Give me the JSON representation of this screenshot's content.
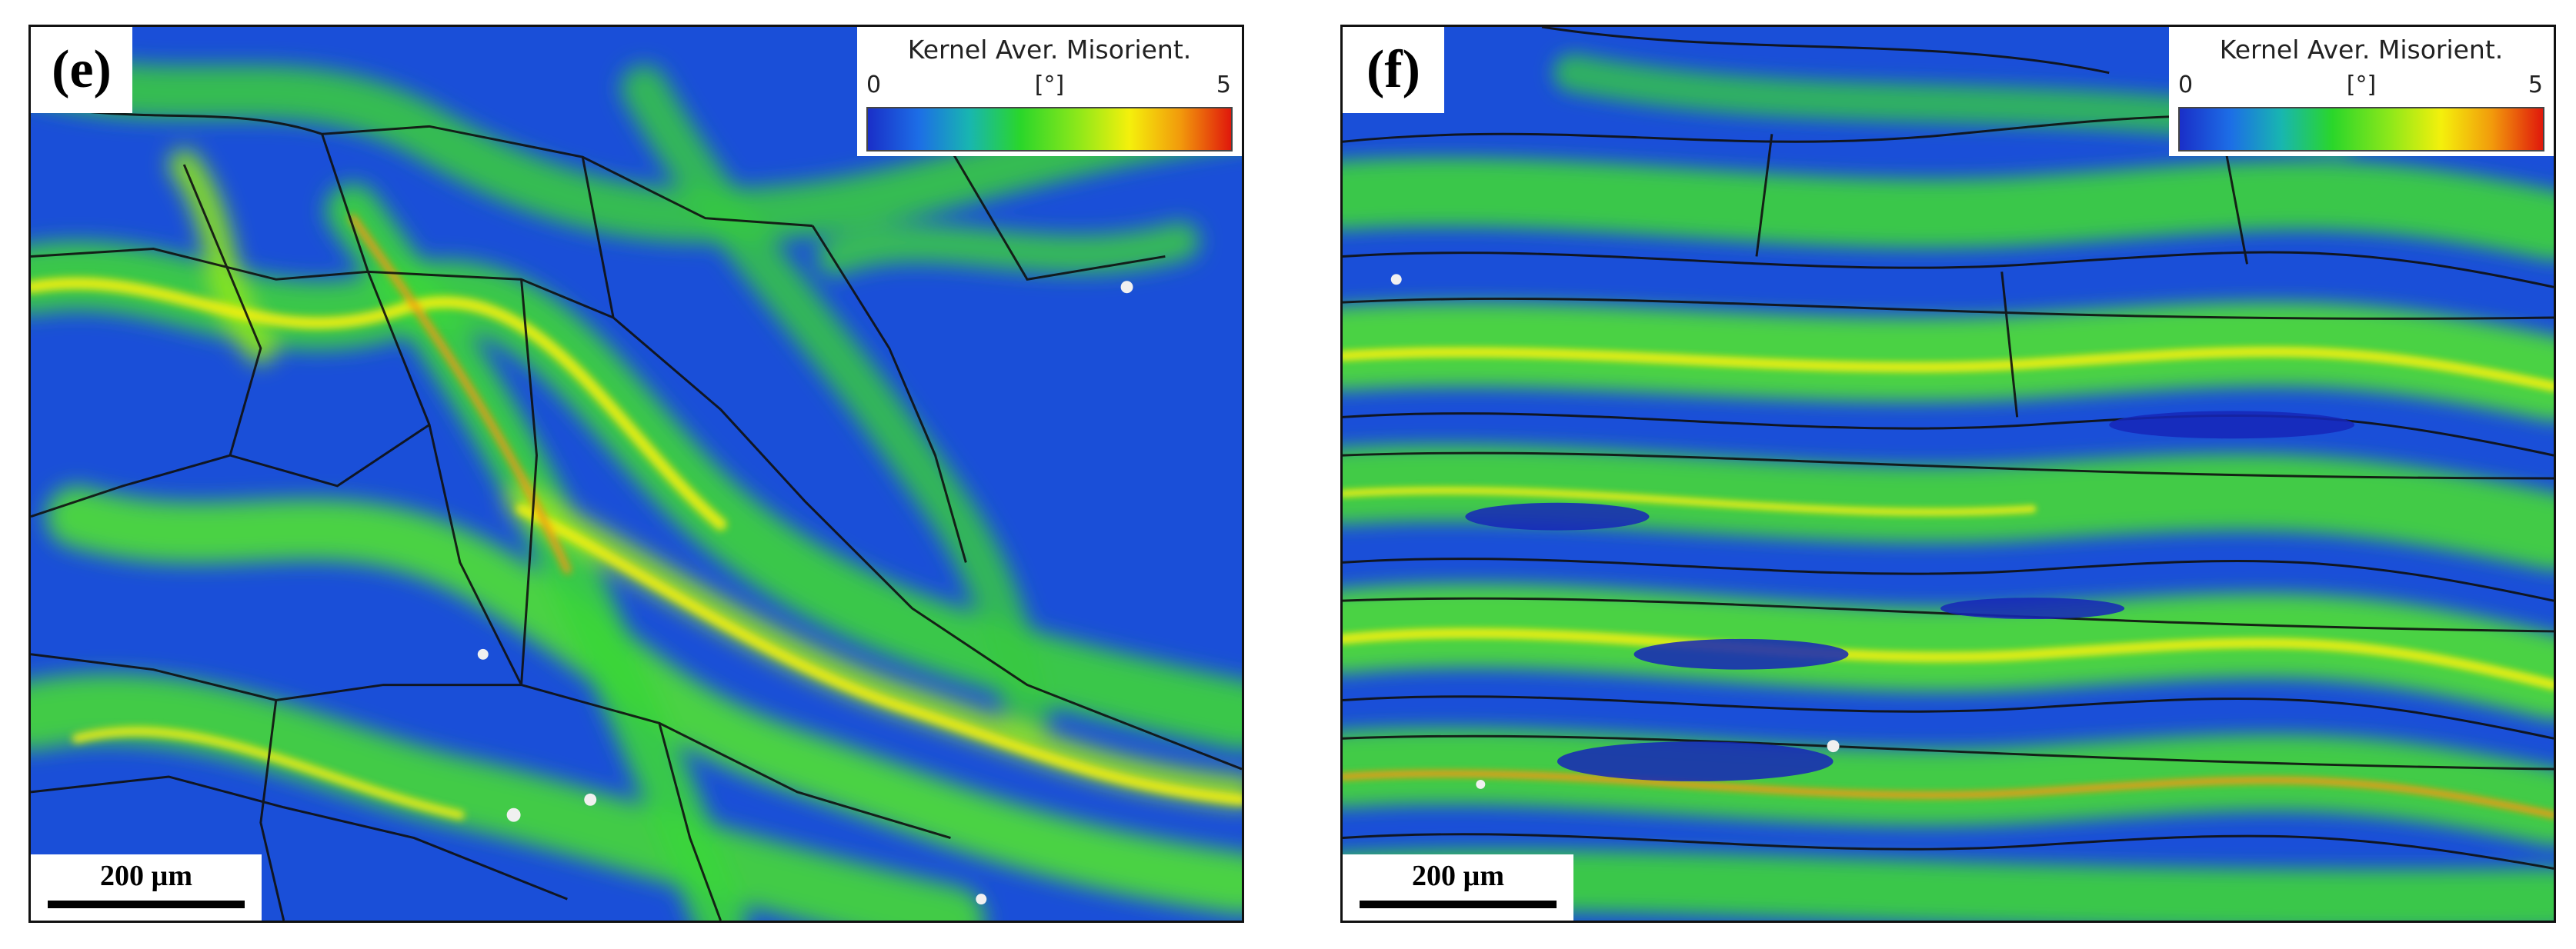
{
  "panels": [
    {
      "label": "(e)",
      "legend": {
        "title": "Kernel Aver. Misorient.",
        "min": "0",
        "unit": "[°]",
        "max": "5"
      },
      "scale_bar": "200 µm"
    },
    {
      "label": "(f)",
      "legend": {
        "title": "Kernel Aver. Misorient.",
        "min": "0",
        "unit": "[°]",
        "max": "5"
      },
      "scale_bar": "200 µm"
    }
  ],
  "colors": {
    "background_low": "#1a4fd8",
    "medium": "#2ad62a",
    "high": "#f4f00c",
    "max": "#e0180c",
    "boundary": "#101010"
  }
}
